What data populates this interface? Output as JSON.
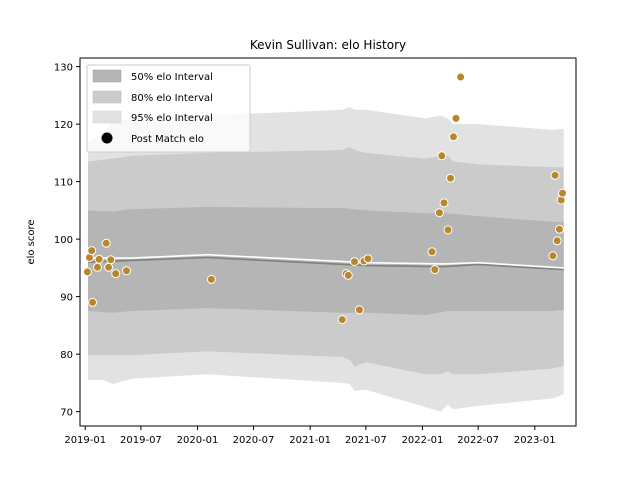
{
  "chart_data": {
    "type": "area",
    "title": "Kevin Sullivan: elo History",
    "xlabel": "",
    "ylabel": "elo score",
    "xlim": [
      "2018-12-15",
      "2023-05-15"
    ],
    "ylim": [
      67.5,
      131.5
    ],
    "x_ticks": [
      "2019-01",
      "2019-07",
      "2020-01",
      "2020-07",
      "2021-01",
      "2021-07",
      "2022-01",
      "2022-07",
      "2023-01"
    ],
    "y_ticks": [
      70,
      80,
      90,
      100,
      110,
      120,
      130
    ],
    "grid": false,
    "legend": {
      "placement": "top-left",
      "entries": [
        "50% elo Interval",
        "80% elo Interval",
        "95% elo Interval",
        "Post Match elo"
      ]
    },
    "colors": {
      "band_50": "#b5b5b5",
      "band_80": "#cbcbcb",
      "band_95": "#e2e2e2",
      "mean_line": "#808080",
      "median_line": "#ffffff",
      "points": "#b8862b",
      "point_edge": "#ffffff"
    },
    "series": [
      {
        "name": "95% elo Interval",
        "kind": "band",
        "x": [
          "2019-01-10",
          "2019-03-01",
          "2019-04-01",
          "2019-06-01",
          "2020-02-01",
          "2021-04-15",
          "2021-05-10",
          "2021-05-25",
          "2021-07-01",
          "2022-01-10",
          "2022-03-01",
          "2022-03-25",
          "2022-04-10",
          "2022-07-01",
          "2023-03-01",
          "2023-04-05"
        ],
        "lower": [
          75.5,
          75.5,
          74.8,
          75.7,
          76.5,
          75.0,
          74.8,
          73.6,
          73.8,
          70.8,
          70.0,
          71.2,
          70.4,
          71.0,
          72.3,
          73.0
        ],
        "upper": [
          117.0,
          118.0,
          120.5,
          121.0,
          121.5,
          122.5,
          123.0,
          122.5,
          122.5,
          121.0,
          121.5,
          121.0,
          120.0,
          120.0,
          119.0,
          119.2
        ]
      },
      {
        "name": "80% elo Interval",
        "kind": "band",
        "x": [
          "2019-01-10",
          "2019-04-01",
          "2019-06-01",
          "2020-02-01",
          "2021-04-15",
          "2021-05-10",
          "2021-05-25",
          "2021-07-01",
          "2022-01-10",
          "2022-03-01",
          "2022-03-25",
          "2022-04-10",
          "2022-07-01",
          "2023-03-01",
          "2023-04-05"
        ],
        "lower": [
          79.8,
          79.8,
          79.8,
          80.5,
          79.5,
          79.0,
          77.8,
          78.6,
          76.5,
          76.5,
          77.0,
          76.5,
          76.5,
          77.5,
          78.0
        ],
        "upper": [
          113.5,
          114.0,
          114.5,
          115.0,
          115.5,
          116.0,
          115.5,
          115.0,
          114.0,
          114.5,
          114.5,
          113.5,
          113.0,
          112.5,
          112.5
        ]
      },
      {
        "name": "50% elo Interval",
        "kind": "band",
        "x": [
          "2019-01-10",
          "2019-04-01",
          "2019-06-01",
          "2020-02-01",
          "2021-04-15",
          "2021-07-01",
          "2022-01-10",
          "2022-03-25",
          "2022-07-01",
          "2023-03-01",
          "2023-04-05"
        ],
        "lower": [
          87.5,
          87.2,
          87.5,
          88.0,
          87.2,
          87.2,
          86.8,
          87.5,
          87.5,
          87.5,
          87.7
        ],
        "upper": [
          105.0,
          104.8,
          105.2,
          105.6,
          105.4,
          105.0,
          104.5,
          104.5,
          104.0,
          103.0,
          103.0
        ]
      },
      {
        "name": "mean",
        "kind": "line",
        "x": [
          "2019-01-10",
          "2019-06-01",
          "2020-02-01",
          "2021-07-01",
          "2022-03-10",
          "2022-07-01",
          "2023-04-05"
        ],
        "y": [
          96.0,
          96.3,
          96.8,
          95.4,
          95.2,
          95.6,
          94.7
        ]
      },
      {
        "name": "median",
        "kind": "line",
        "x": [
          "2019-01-10",
          "2019-06-01",
          "2020-02-01",
          "2021-07-01",
          "2022-03-10",
          "2022-07-01",
          "2023-04-05"
        ],
        "y": [
          96.7,
          96.7,
          97.3,
          95.9,
          95.7,
          95.9,
          95.0
        ]
      },
      {
        "name": "Post Match elo",
        "kind": "scatter",
        "x": [
          "2019-01-08",
          "2019-01-15",
          "2019-01-22",
          "2019-01-25",
          "2019-02-10",
          "2019-02-15",
          "2019-03-10",
          "2019-03-18",
          "2019-03-25",
          "2019-04-10",
          "2019-05-15",
          "2020-02-15",
          "2021-04-15",
          "2021-04-28",
          "2021-05-05",
          "2021-05-25",
          "2021-06-10",
          "2021-06-25",
          "2021-07-08",
          "2022-02-01",
          "2022-02-10",
          "2022-02-25",
          "2022-03-05",
          "2022-03-12",
          "2022-03-25",
          "2022-04-02",
          "2022-04-12",
          "2022-04-20",
          "2022-05-05",
          "2023-03-01",
          "2023-03-08",
          "2023-03-15",
          "2023-03-22",
          "2023-03-28",
          "2023-04-01"
        ],
        "y": [
          94.3,
          96.8,
          98.0,
          89.0,
          95.1,
          96.5,
          99.3,
          95.1,
          96.4,
          94.0,
          94.5,
          93.0,
          86.0,
          94.0,
          93.7,
          96.1,
          87.7,
          96.2,
          96.6,
          97.8,
          94.7,
          104.6,
          114.5,
          106.3,
          101.6,
          110.6,
          117.8,
          121.0,
          128.2,
          97.1,
          111.1,
          99.7,
          101.7,
          106.8,
          108.0
        ]
      }
    ]
  }
}
